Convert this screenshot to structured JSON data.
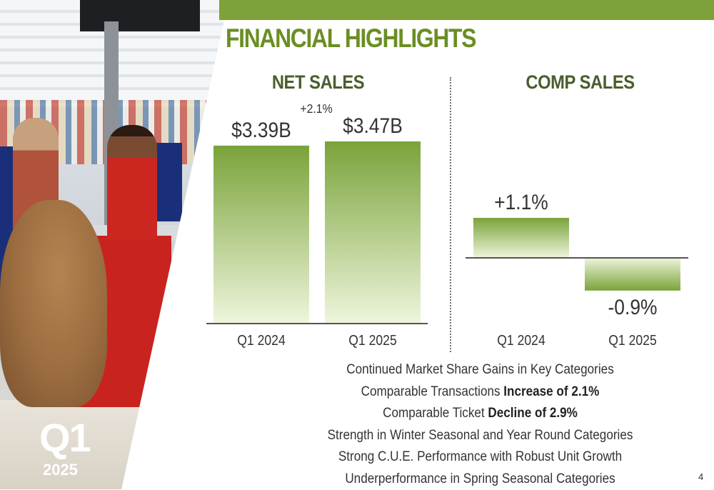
{
  "header": {
    "title": "FINANCIAL HIGHLIGHTS",
    "badge_q": "Q1",
    "badge_year": "2025",
    "page_number": "4"
  },
  "colors": {
    "accent": "#7fa13a",
    "title": "#6b8e23",
    "section": "#4a5e2e",
    "bar_top": "#7aa33a",
    "bar_bottom": "#eef5dc"
  },
  "chart_data": [
    {
      "type": "bar",
      "title": "NET SALES",
      "categories": [
        "Q1 2024",
        "Q1 2025"
      ],
      "values": [
        3.39,
        3.47
      ],
      "value_labels": [
        "$3.39B",
        "$3.47B"
      ],
      "annotation": "+2.1%",
      "unit": "B"
    },
    {
      "type": "bar",
      "title": "COMP SALES",
      "categories": [
        "Q1 2024",
        "Q1 2025"
      ],
      "values": [
        1.1,
        -0.9
      ],
      "value_labels": [
        "+1.1%",
        "-0.9%"
      ],
      "unit": "%"
    }
  ],
  "highlights": [
    {
      "text": "Continued Market Share Gains in Key Categories",
      "bold": ""
    },
    {
      "text": "Comparable Transactions ",
      "bold": "Increase of 2.1%"
    },
    {
      "text": "Comparable Ticket ",
      "bold": "Decline of 2.9%"
    },
    {
      "text": "Strength in Winter Seasonal and Year Round Categories",
      "bold": ""
    },
    {
      "text": "Strong C.U.E. Performance with Robust Unit Growth",
      "bold": ""
    },
    {
      "text": "Underperformance in Spring Seasonal Categories",
      "bold": ""
    }
  ]
}
